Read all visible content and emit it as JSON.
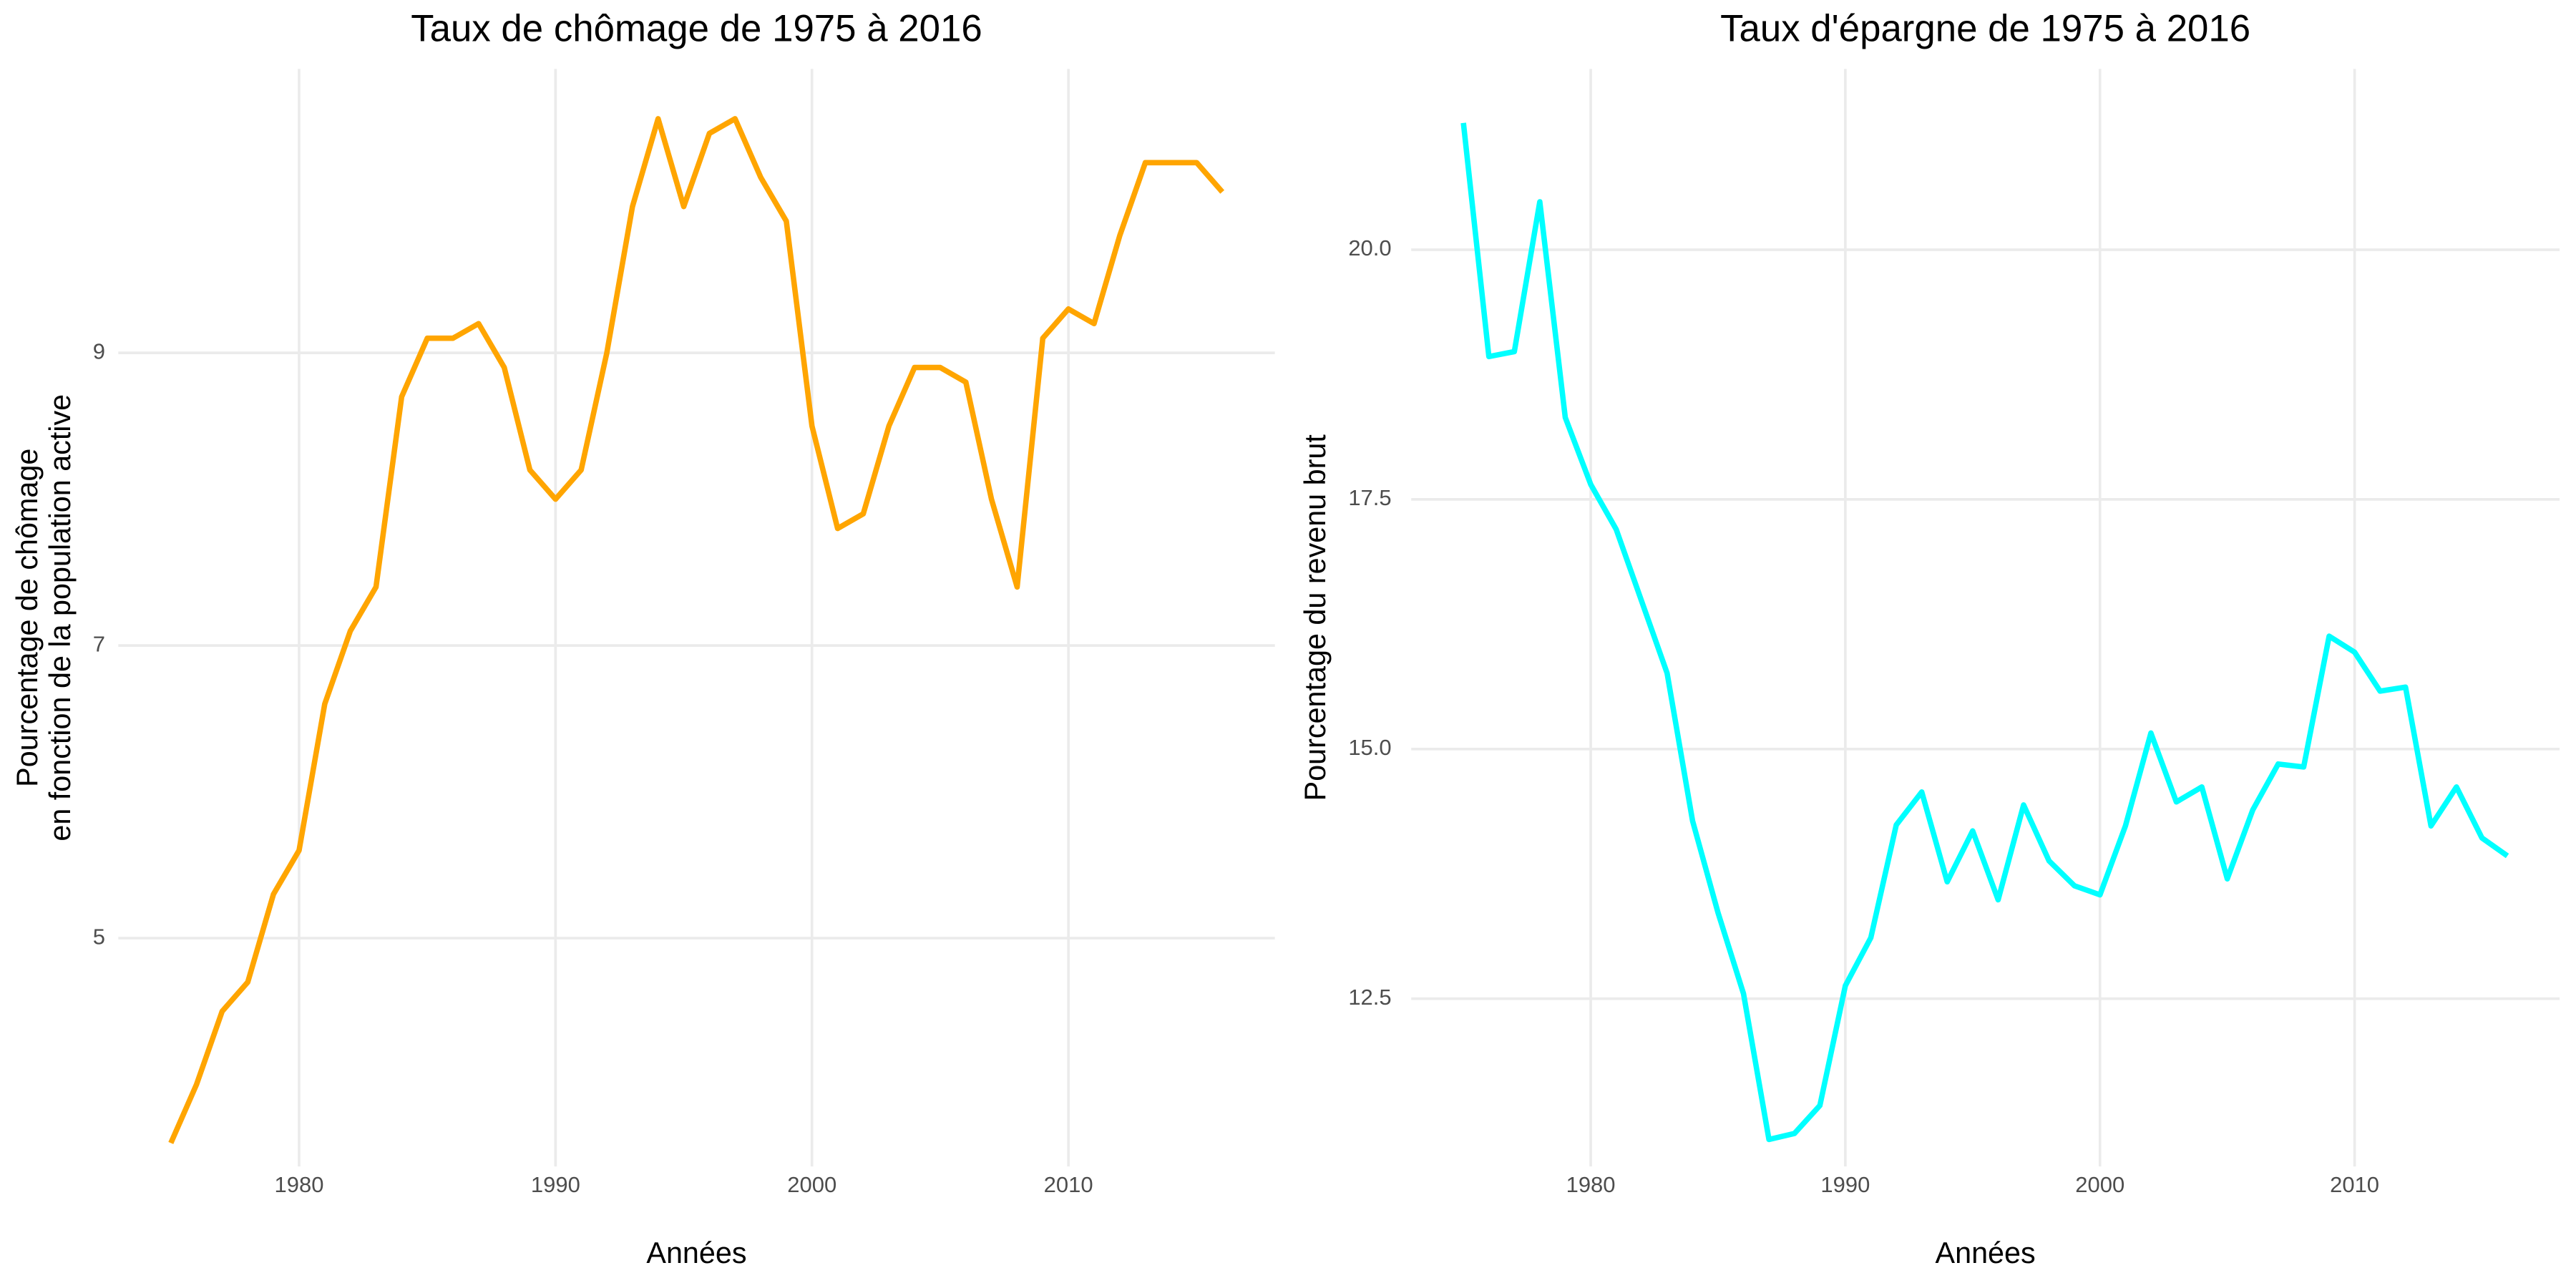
{
  "chart_data": [
    {
      "type": "line",
      "title": "Taux de chômage de 1975 à 2016",
      "xlabel": "Années",
      "ylabel": [
        "Pourcentage de chômage",
        "en fonction de la population active"
      ],
      "x": [
        1975,
        1976,
        1977,
        1978,
        1979,
        1980,
        1981,
        1982,
        1983,
        1984,
        1985,
        1986,
        1987,
        1988,
        1989,
        1990,
        1991,
        1992,
        1993,
        1994,
        1995,
        1996,
        1997,
        1998,
        1999,
        2000,
        2001,
        2002,
        2003,
        2004,
        2005,
        2006,
        2007,
        2008,
        2009,
        2010,
        2011,
        2012,
        2013,
        2014,
        2015,
        2016
      ],
      "values": [
        3.6,
        4.0,
        4.5,
        4.7,
        5.3,
        5.6,
        6.6,
        7.1,
        7.4,
        8.7,
        9.1,
        9.1,
        9.2,
        8.9,
        8.2,
        8.0,
        8.2,
        9.0,
        10.0,
        10.6,
        10.0,
        10.5,
        10.6,
        10.2,
        9.9,
        8.5,
        7.8,
        7.9,
        8.5,
        8.9,
        8.9,
        8.8,
        8.0,
        7.4,
        9.1,
        9.3,
        9.2,
        9.8,
        10.3,
        10.3,
        10.3,
        10.1
      ],
      "color": "#FFA500",
      "xlim": [
        1972.95,
        2018.05
      ],
      "xticks": [
        1980,
        1990,
        2000,
        2010
      ],
      "ylim": [
        3.44,
        10.94
      ],
      "yticks": [
        5,
        7,
        9
      ],
      "grid": true
    },
    {
      "type": "line",
      "title": "Taux d'épargne de 1975 à 2016",
      "xlabel": "Années",
      "ylabel": [
        "Pourcentage du revenu brut"
      ],
      "x": [
        1975,
        1976,
        1977,
        1978,
        1979,
        1980,
        1981,
        1982,
        1983,
        1984,
        1985,
        1986,
        1987,
        1988,
        1989,
        1990,
        1991,
        1992,
        1993,
        1994,
        1995,
        1996,
        1997,
        1998,
        1999,
        2000,
        2001,
        2002,
        2003,
        2004,
        2005,
        2006,
        2007,
        2008,
        2009,
        2010,
        2011,
        2012,
        2013,
        2014,
        2015,
        2016
      ],
      "values": [
        21.27,
        18.93,
        18.98,
        20.48,
        18.32,
        17.65,
        17.2,
        16.48,
        15.76,
        14.28,
        13.36,
        12.55,
        11.09,
        11.15,
        11.43,
        12.63,
        13.11,
        14.24,
        14.57,
        13.67,
        14.18,
        13.49,
        14.44,
        13.88,
        13.63,
        13.54,
        14.23,
        15.16,
        14.47,
        14.62,
        13.7,
        14.39,
        14.85,
        14.82,
        16.13,
        15.97,
        15.58,
        15.62,
        14.23,
        14.62,
        14.11,
        13.93
      ],
      "color": "#00FFFF",
      "xlim": [
        1972.95,
        2018.05
      ],
      "xticks": [
        1980,
        1990,
        2000,
        2010
      ],
      "ylim": [
        10.82,
        21.81
      ],
      "yticks": [
        {
          "value": 12.5,
          "label": "12.5"
        },
        {
          "value": 15,
          "label": "15.0"
        },
        {
          "value": 17.5,
          "label": "17.5"
        },
        {
          "value": 20,
          "label": "20.0"
        }
      ],
      "grid": true
    }
  ]
}
